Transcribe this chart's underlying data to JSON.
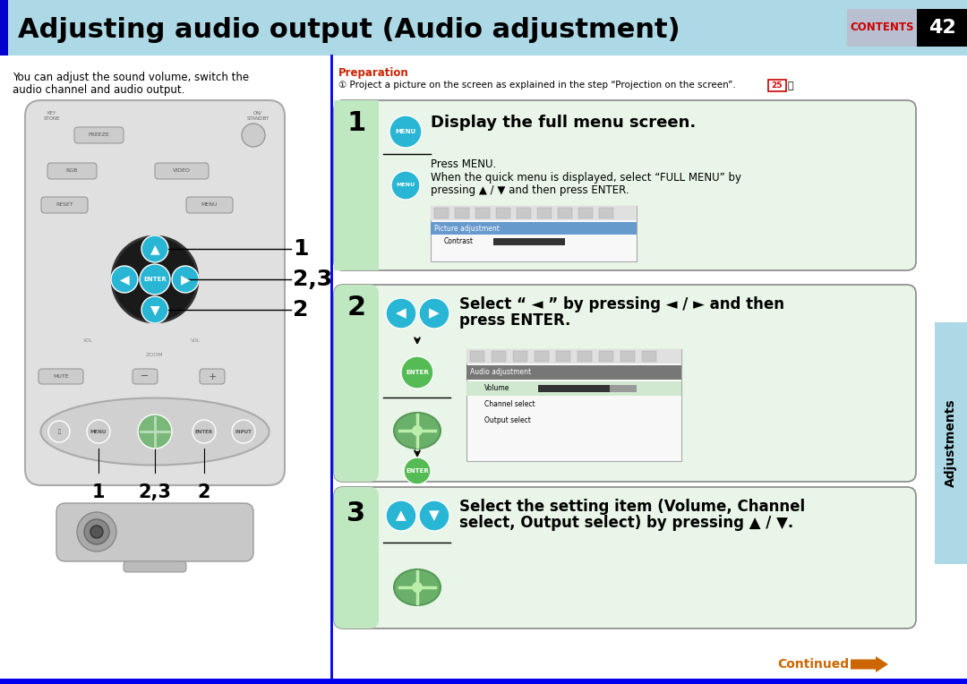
{
  "title": "Adjusting audio output (Audio adjustment)",
  "title_bg": "#add8e6",
  "title_color": "#000000",
  "title_blue_bar": "#0000cc",
  "page_bg": "#ffffff",
  "contents_text": "CONTENTS",
  "contents_color": "#cc0000",
  "contents_bg": "#b8bfd0",
  "page_number": "42",
  "page_num_bg": "#000000",
  "page_num_color": "#ffffff",
  "right_tab_text": "Adjustments",
  "right_tab_bg": "#add8e6",
  "right_tab_textcolor": "#000000",
  "left_col_text1": "You can adjust the sound volume, switch the",
  "left_col_text2": "audio channel and audio output.",
  "prep_label": "Preparation",
  "prep_color": "#cc2200",
  "prep_text": "① Project a picture on the screen as explained in the step “Projection on the screen”.",
  "prep_num": "25",
  "step1_title": "Display the full menu screen.",
  "step1_text1": "Press MENU.",
  "step1_text2": "When the quick menu is displayed, select “FULL MENU” by",
  "step1_text3": "pressing ▲ / ▼ and then press ENTER.",
  "step2_title": "Select “ ◄ ” by pressing ◄ / ► and then",
  "step2_title2": "press ENTER.",
  "step3_title": "Select the setting item (Volume, Channel",
  "step3_title2": "select, Output select) by pressing ▲ / ▼.",
  "step_bg": "#e8f5e8",
  "step_border": "#888888",
  "step_green_stripe": "#c0e8c0",
  "continued_text": "Continued",
  "continued_color": "#cc6600",
  "divider_color": "#0000ee",
  "menu_icon_color": "#29b6d5",
  "enter_icon_color": "#55bb55",
  "nav_icon_color": "#29b6d5",
  "rc_body_color": "#e0e0e0",
  "rc_border_color": "#aaaaaa"
}
